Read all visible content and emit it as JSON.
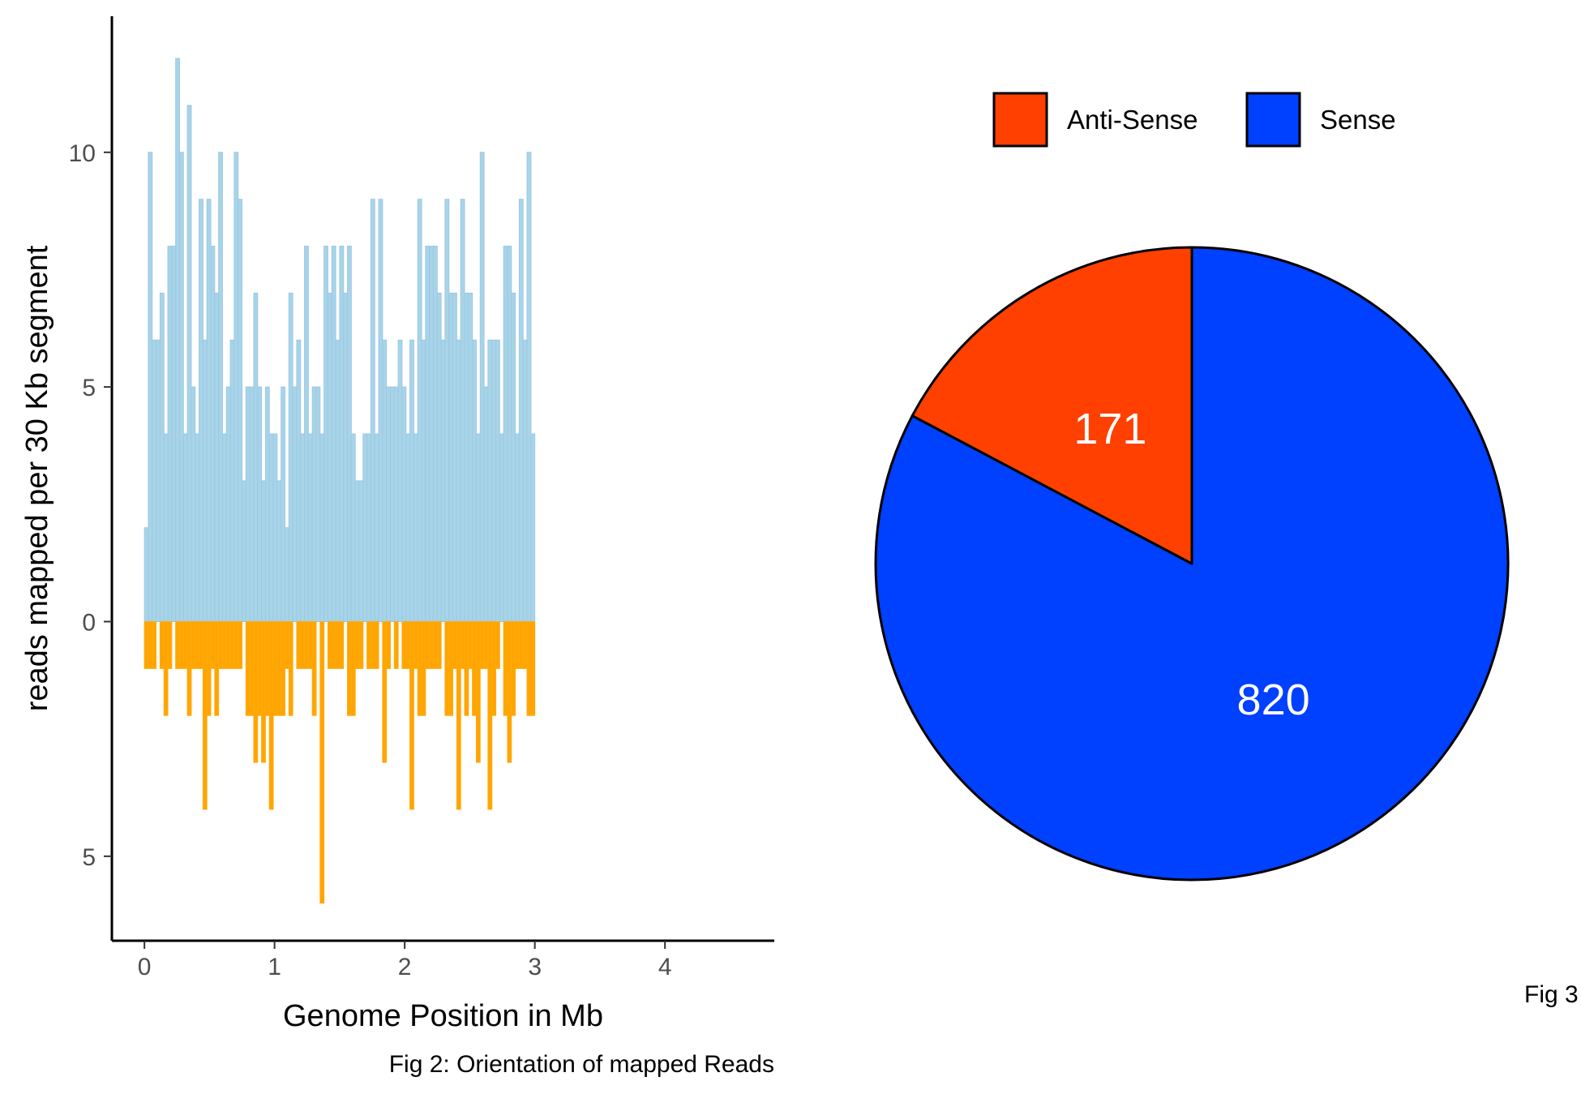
{
  "chart_data": [
    {
      "type": "bar",
      "xlabel": "Genome Position in Mb",
      "ylabel": "reads mapped per 30 Kb segment",
      "caption": "Fig 2: Orientation of mapped Reads",
      "bin_width_mb": 0.03,
      "xlim": [
        -0.25,
        4.84
      ],
      "ylim": [
        -6.8,
        12.9
      ],
      "xticks": [
        0,
        1,
        2,
        3,
        4
      ],
      "yticks": [
        {
          "value": 10,
          "label": "10"
        },
        {
          "value": 5,
          "label": "5"
        },
        {
          "value": 0,
          "label": "0"
        },
        {
          "value": -5,
          "label": "5"
        }
      ],
      "grid": false,
      "colors": {
        "sense": "#a8d4e8",
        "antisense": "#ffa500"
      },
      "series": [
        {
          "values": [
            2,
            10,
            6,
            6,
            7,
            4,
            8,
            8,
            12,
            10,
            4,
            11,
            5,
            4,
            9,
            6,
            9,
            8,
            7,
            10,
            4,
            5,
            6,
            10,
            9,
            3,
            5,
            5,
            7,
            5,
            3,
            5,
            4,
            4,
            3,
            5,
            2,
            7,
            5,
            6,
            4,
            8,
            4,
            5,
            5,
            4,
            8,
            7,
            8,
            6,
            8,
            7,
            8,
            4,
            3,
            3,
            4,
            4,
            9,
            4,
            9,
            6,
            5,
            5,
            5,
            6,
            5,
            4,
            6,
            4,
            9,
            6,
            8,
            8,
            8,
            7,
            6,
            9,
            7,
            7,
            6,
            9,
            7,
            7,
            6,
            4,
            10,
            5,
            6,
            6,
            6,
            4,
            8,
            8,
            7,
            4,
            9,
            6,
            10,
            4
          ],
          "x_start": 0.0
        },
        {
          "values": [
            -1,
            -1,
            -1,
            0,
            -1,
            -2,
            -1,
            0,
            -1,
            -1,
            -1,
            -2,
            -1,
            -1,
            -1,
            -4,
            -2,
            -1,
            -2,
            -1,
            -1,
            -1,
            -1,
            -1,
            -1,
            0,
            -2,
            -2,
            -3,
            -2,
            -3,
            -2,
            -4,
            -2,
            -2,
            -2,
            -1,
            -2,
            0,
            -1,
            -1,
            -1,
            -1,
            -2,
            0,
            -6,
            0,
            -1,
            -1,
            -1,
            -1,
            0,
            -2,
            -2,
            -1,
            -1,
            0,
            -1,
            -1,
            -1,
            0,
            -3,
            -1,
            0,
            -1,
            0,
            -1,
            -1,
            -4,
            -1,
            -2,
            -2,
            -1,
            -1,
            -1,
            -1,
            0,
            -2,
            -2,
            -1,
            -4,
            -1,
            -2,
            -1,
            -2,
            -3,
            -1,
            -1,
            -4,
            -2,
            -1,
            0,
            -2,
            -3,
            -2,
            -1,
            -1,
            -1,
            -2,
            -2
          ],
          "x_start": 0.0
        }
      ]
    },
    {
      "type": "pie",
      "caption": "Fig 3",
      "start_angle_deg": 0,
      "direction": "clockwise",
      "legend": {
        "position": "top"
      },
      "slices": [
        {
          "label": "Sense",
          "value": 820,
          "color": "#0040ff"
        },
        {
          "label": "Anti-Sense",
          "value": 171,
          "color": "#ff4000"
        }
      ],
      "legend_order": [
        "Anti-Sense",
        "Sense"
      ]
    }
  ]
}
